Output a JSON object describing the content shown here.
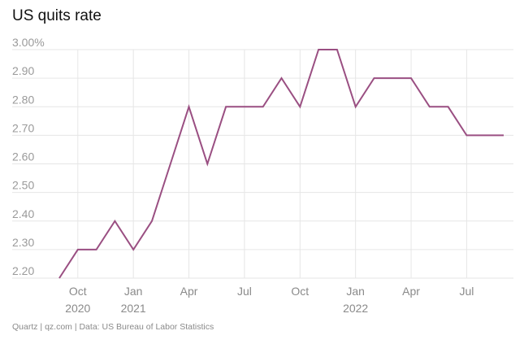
{
  "chart_data": {
    "type": "line",
    "title": "US quits rate",
    "source": "Quartz | qz.com | Data: US Bureau of Labor Statistics",
    "xlabel": "",
    "ylabel": "",
    "ylim": [
      2.2,
      3.0
    ],
    "yticks": [
      {
        "value": 3.0,
        "label": "3.00%"
      },
      {
        "value": 2.9,
        "label": "2.90"
      },
      {
        "value": 2.8,
        "label": "2.80"
      },
      {
        "value": 2.7,
        "label": "2.70"
      },
      {
        "value": 2.6,
        "label": "2.60"
      },
      {
        "value": 2.5,
        "label": "2.50"
      },
      {
        "value": 2.4,
        "label": "2.40"
      },
      {
        "value": 2.3,
        "label": "2.30"
      },
      {
        "value": 2.2,
        "label": "2.20"
      }
    ],
    "xticks": [
      {
        "month": 1,
        "label": "Oct",
        "year": "2020"
      },
      {
        "month": 4,
        "label": "Jan",
        "year": "2021"
      },
      {
        "month": 7,
        "label": "Apr",
        "year": ""
      },
      {
        "month": 10,
        "label": "Jul",
        "year": ""
      },
      {
        "month": 13,
        "label": "Oct",
        "year": ""
      },
      {
        "month": 16,
        "label": "Jan",
        "year": "2022"
      },
      {
        "month": 19,
        "label": "Apr",
        "year": ""
      },
      {
        "month": 22,
        "label": "Jul",
        "year": ""
      }
    ],
    "x_range": [
      0,
      24
    ],
    "series": [
      {
        "name": "Quits rate",
        "color": "#9a4f82",
        "x": [
          "Sep 2020",
          "Oct 2020",
          "Nov 2020",
          "Dec 2020",
          "Jan 2021",
          "Feb 2021",
          "Mar 2021",
          "Apr 2021",
          "May 2021",
          "Jun 2021",
          "Jul 2021",
          "Aug 2021",
          "Sep 2021",
          "Oct 2021",
          "Nov 2021",
          "Dec 2021",
          "Jan 2022",
          "Feb 2022",
          "Mar 2022",
          "Apr 2022",
          "May 2022",
          "Jun 2022",
          "Jul 2022",
          "Aug 2022",
          "Sep 2022"
        ],
        "values": [
          2.2,
          2.3,
          2.3,
          2.4,
          2.3,
          2.4,
          2.6,
          2.8,
          2.6,
          2.8,
          2.8,
          2.8,
          2.9,
          2.8,
          3.0,
          3.0,
          2.8,
          2.9,
          2.9,
          2.9,
          2.8,
          2.8,
          2.7,
          2.7,
          2.7
        ]
      }
    ]
  }
}
